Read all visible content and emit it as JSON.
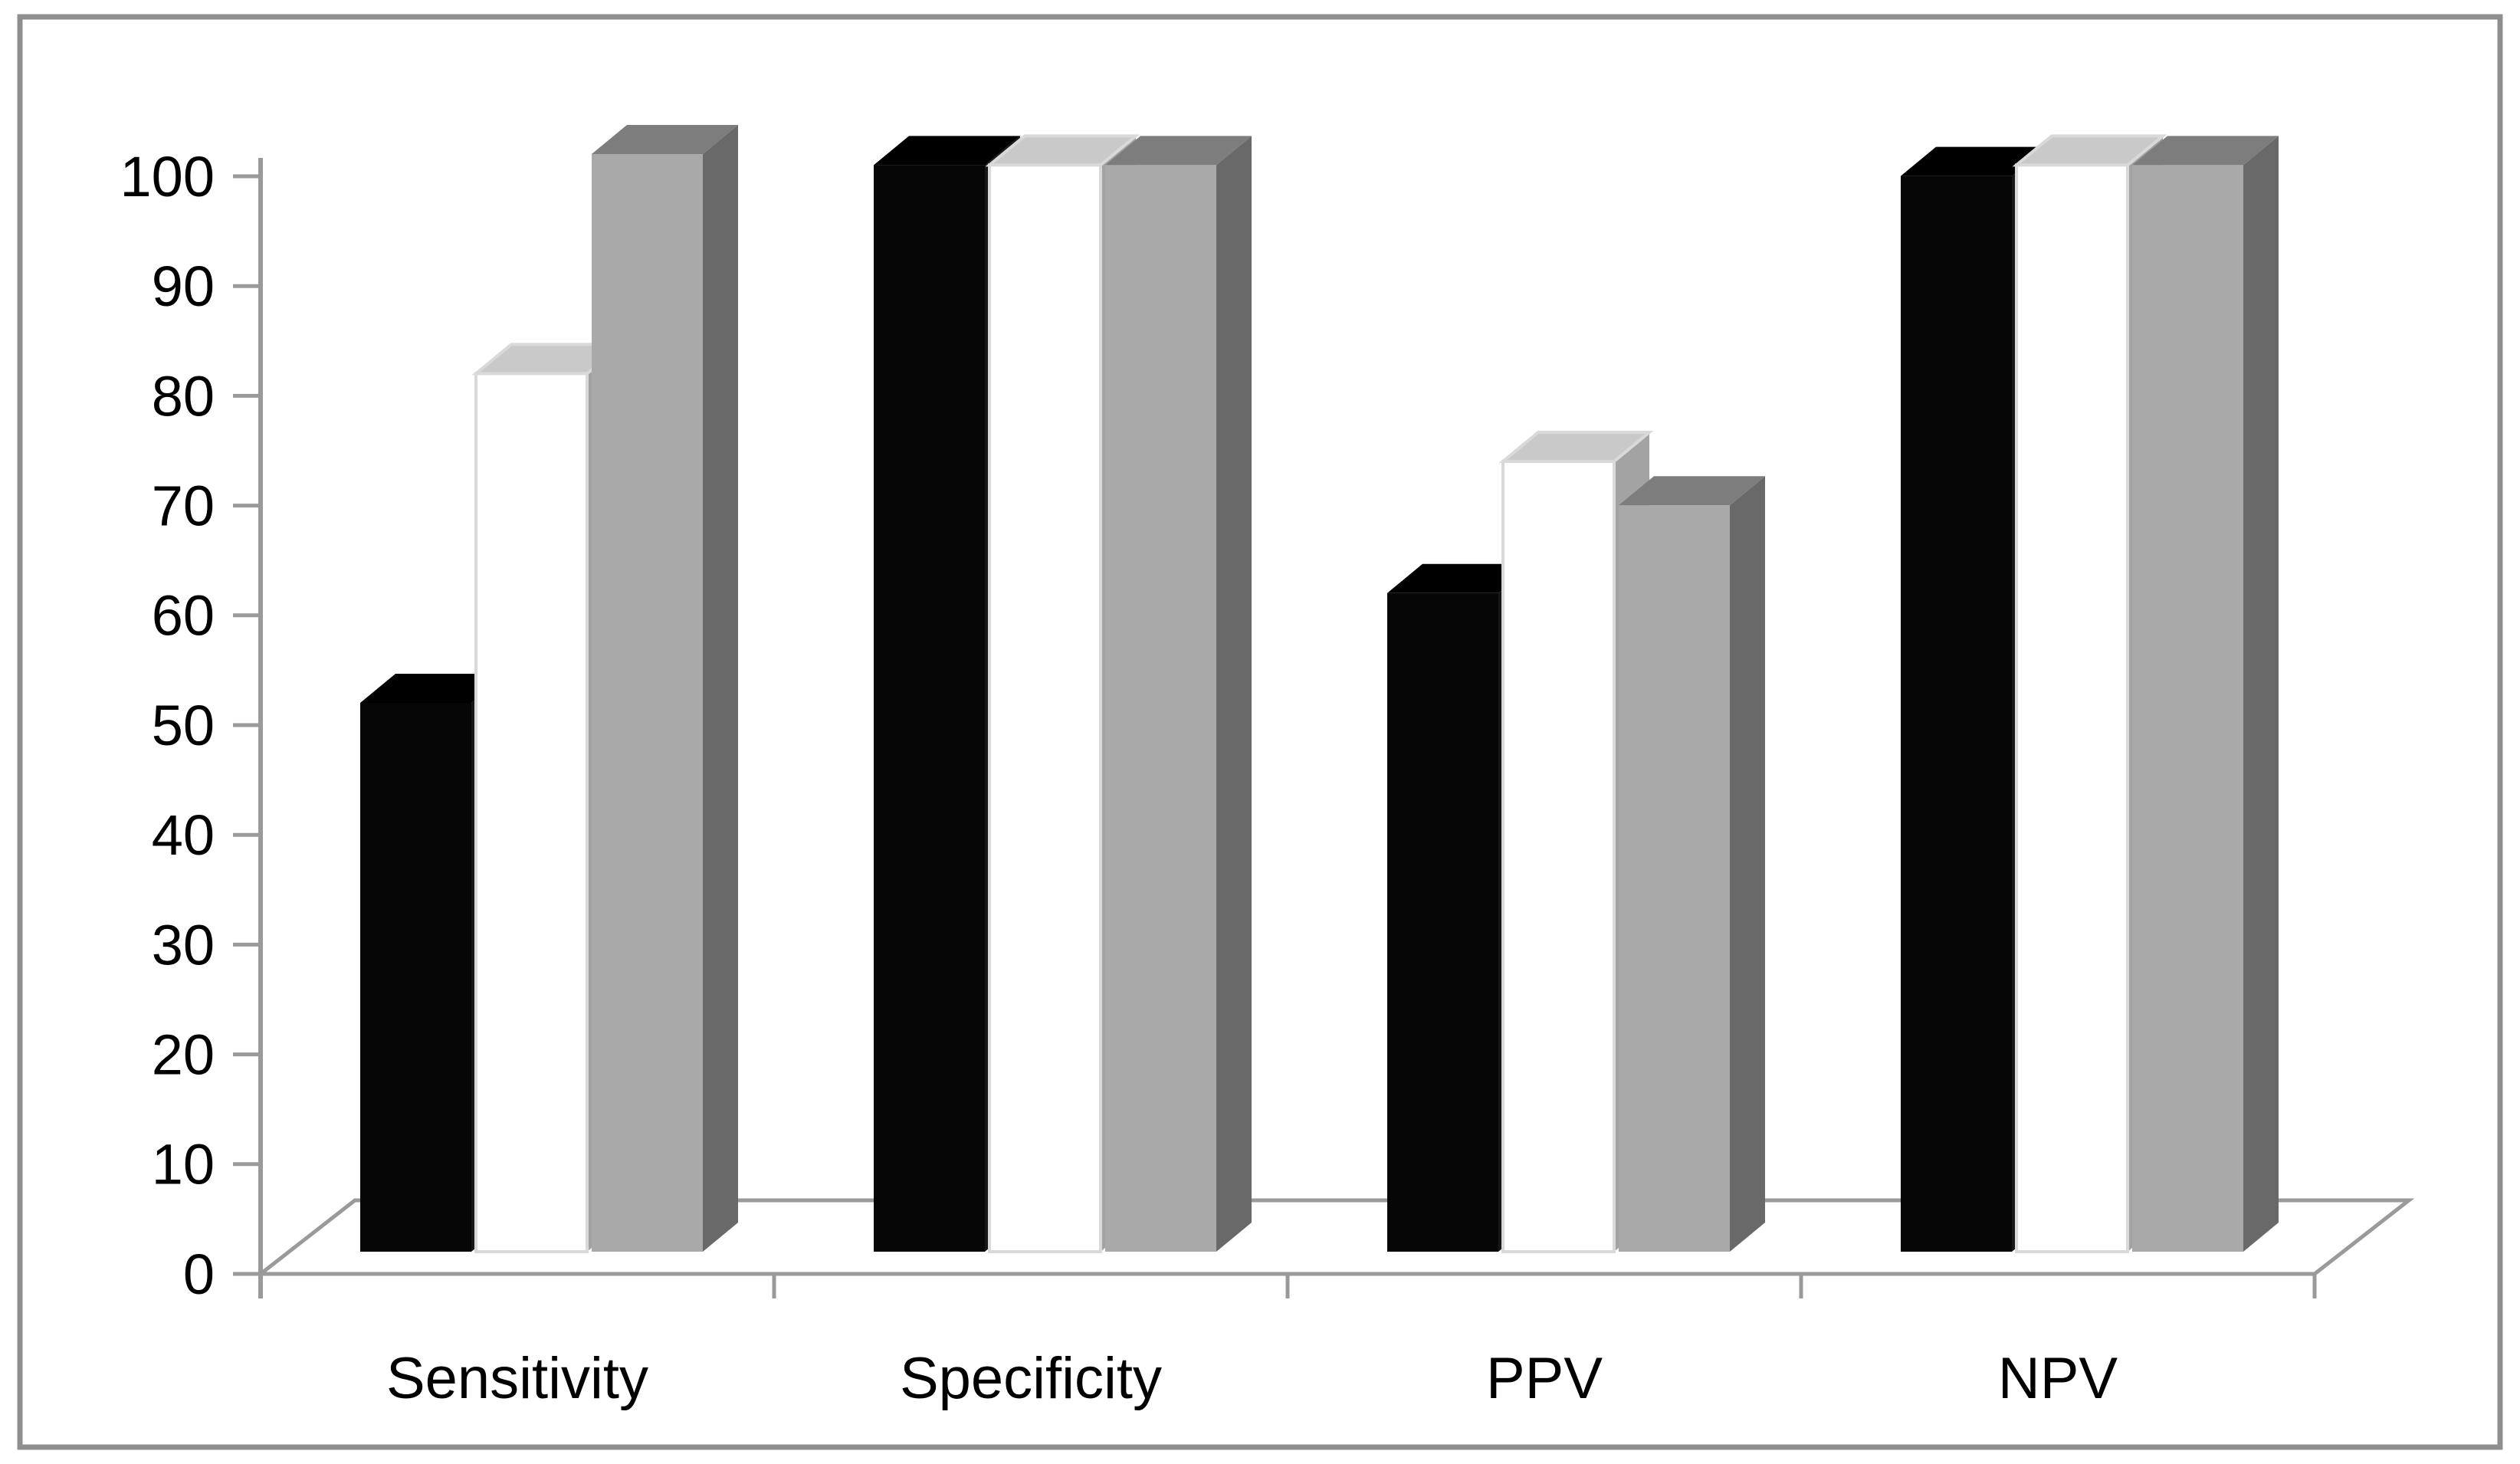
{
  "chart_data": {
    "type": "bar",
    "style": "3d-clustered-column",
    "title": "",
    "xlabel": "",
    "ylabel": "",
    "categories": [
      "Sensitivity",
      "Specificity",
      "PPV",
      "NPV"
    ],
    "series": [
      {
        "name": "black",
        "color": "#060606",
        "top_color": "#000000",
        "side_color": "#171717",
        "values": [
          50,
          99,
          60,
          98
        ]
      },
      {
        "name": "white",
        "color": "#ffffff",
        "border_color": "#d9d9d9",
        "top_color": "#c9c9c9",
        "side_color": "#a3a3a3",
        "values": [
          80,
          99,
          72,
          99
        ]
      },
      {
        "name": "gray",
        "color": "#a9a9a9",
        "top_color": "#7d7d7d",
        "side_color": "#696969",
        "values": [
          100,
          99,
          68,
          99
        ]
      }
    ],
    "ylim": [
      0,
      100
    ],
    "yticks": [
      0,
      10,
      20,
      30,
      40,
      50,
      60,
      70,
      80,
      90,
      100
    ],
    "grid": false,
    "legend": "none",
    "axis_color": "#9a9a9a",
    "frame_color": "#8f8f8f",
    "text_color": "#000000",
    "background": "#ffffff"
  }
}
